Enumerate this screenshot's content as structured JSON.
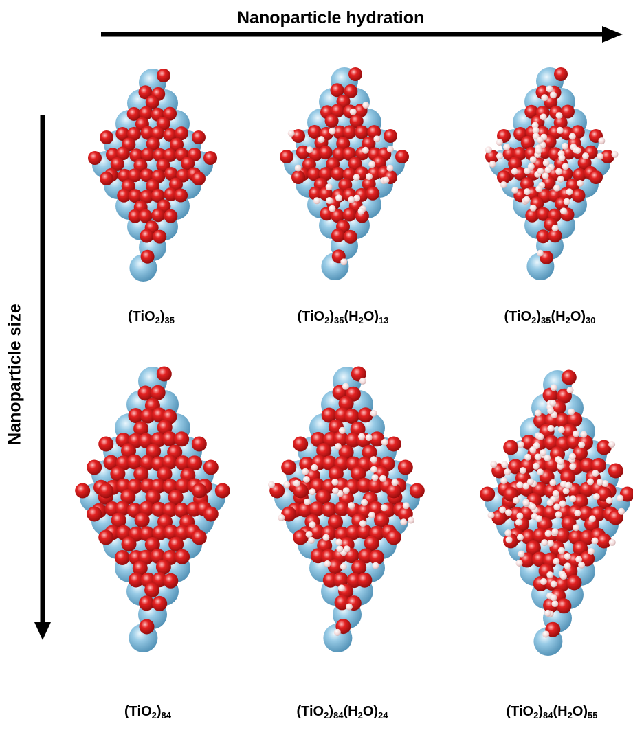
{
  "axes": {
    "horizontal_label": "Nanoparticle hydration",
    "vertical_label": "Nanoparticle size"
  },
  "colors": {
    "titanium": "#7fb9da",
    "oxygen": "#e41e1e",
    "hydrogen": "#f6dede",
    "arrow": "#000000"
  },
  "panels": [
    {
      "parts": [
        [
          "(TiO",
          false
        ],
        [
          "2",
          true
        ],
        [
          ")",
          false
        ],
        [
          "35",
          true
        ]
      ],
      "ti_rows": [
        1,
        2,
        3,
        4,
        5,
        4,
        3,
        2,
        1,
        1
      ],
      "h_count": 0
    },
    {
      "parts": [
        [
          "(TiO",
          false
        ],
        [
          "2",
          true
        ],
        [
          ")",
          false
        ],
        [
          "35",
          true
        ],
        [
          "(H",
          false
        ],
        [
          "2",
          true
        ],
        [
          "O)",
          false
        ],
        [
          "13",
          true
        ]
      ],
      "ti_rows": [
        1,
        2,
        3,
        4,
        5,
        4,
        3,
        2,
        1,
        1
      ],
      "h_count": 26
    },
    {
      "parts": [
        [
          "(TiO",
          false
        ],
        [
          "2",
          true
        ],
        [
          ")",
          false
        ],
        [
          "35",
          true
        ],
        [
          "(H",
          false
        ],
        [
          "2",
          true
        ],
        [
          "O)",
          false
        ],
        [
          "30",
          true
        ]
      ],
      "ti_rows": [
        1,
        2,
        3,
        4,
        5,
        4,
        3,
        2,
        1,
        1
      ],
      "h_count": 60
    },
    {
      "parts": [
        [
          "(TiO",
          false
        ],
        [
          "2",
          true
        ],
        [
          ")",
          false
        ],
        [
          "84",
          true
        ]
      ],
      "ti_rows": [
        1,
        2,
        3,
        4,
        5,
        6,
        5,
        4,
        3,
        2,
        1,
        1
      ],
      "h_count": 0
    },
    {
      "parts": [
        [
          "(TiO",
          false
        ],
        [
          "2",
          true
        ],
        [
          ")",
          false
        ],
        [
          "84",
          true
        ],
        [
          "(H",
          false
        ],
        [
          "2",
          true
        ],
        [
          "O)",
          false
        ],
        [
          "24",
          true
        ]
      ],
      "ti_rows": [
        1,
        2,
        3,
        4,
        5,
        6,
        5,
        4,
        3,
        2,
        1,
        1
      ],
      "h_count": 48
    },
    {
      "parts": [
        [
          "(TiO",
          false
        ],
        [
          "2",
          true
        ],
        [
          ")",
          false
        ],
        [
          "84",
          true
        ],
        [
          "(H",
          false
        ],
        [
          "2",
          true
        ],
        [
          "O)",
          false
        ],
        [
          "55",
          true
        ]
      ],
      "ti_rows": [
        1,
        2,
        3,
        4,
        5,
        6,
        5,
        4,
        3,
        2,
        1,
        1
      ],
      "h_count": 110
    }
  ]
}
